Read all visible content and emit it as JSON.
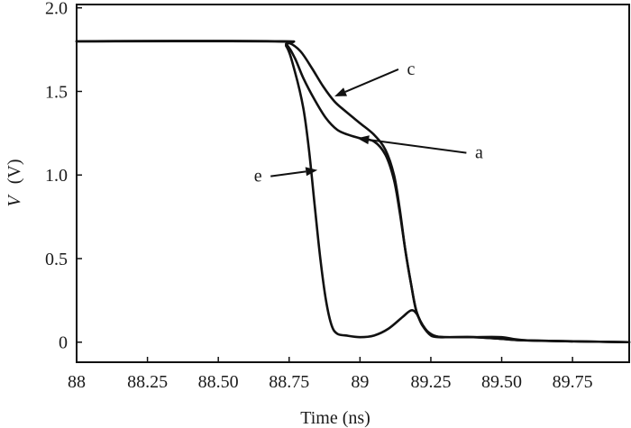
{
  "chart_data": {
    "type": "line",
    "title": "",
    "xlabel": "Time (ns)",
    "ylabel_italic": "V",
    "ylabel_unit": "(V)",
    "xlim": [
      88,
      89.95
    ],
    "ylim": [
      -0.12,
      2.02
    ],
    "xticks": [
      {
        "value": 88,
        "label": "88"
      },
      {
        "value": 88.25,
        "label": "88.25"
      },
      {
        "value": 88.5,
        "label": "88.50"
      },
      {
        "value": 88.75,
        "label": "88.75"
      },
      {
        "value": 89,
        "label": "89"
      },
      {
        "value": 89.25,
        "label": "89.25"
      },
      {
        "value": 89.5,
        "label": "89.50"
      },
      {
        "value": 89.75,
        "label": "89.75"
      }
    ],
    "yticks": [
      {
        "value": 0,
        "label": "0"
      },
      {
        "value": 0.5,
        "label": "0.5"
      },
      {
        "value": 1.0,
        "label": "1.0"
      },
      {
        "value": 1.5,
        "label": "1.5"
      },
      {
        "value": 2.0,
        "label": "2.0"
      }
    ],
    "grid": false,
    "series": [
      {
        "name": "c",
        "x": [
          88,
          88.7,
          88.75,
          88.79,
          88.83,
          88.87,
          88.91,
          88.95,
          89.0,
          89.05,
          89.09,
          89.12,
          89.14,
          89.16,
          89.18,
          89.2,
          89.23,
          89.26,
          89.3,
          89.4,
          89.5,
          89.6,
          89.95
        ],
        "y": [
          1.8,
          1.8,
          1.79,
          1.74,
          1.64,
          1.53,
          1.44,
          1.38,
          1.31,
          1.24,
          1.15,
          1.0,
          0.8,
          0.55,
          0.35,
          0.18,
          0.08,
          0.04,
          0.03,
          0.03,
          0.02,
          0.01,
          0.0
        ]
      },
      {
        "name": "a",
        "x": [
          88,
          88.7,
          88.74,
          88.77,
          88.8,
          88.84,
          88.88,
          88.92,
          88.96,
          89.0,
          89.05,
          89.09,
          89.12,
          89.14,
          89.16,
          89.18,
          89.2,
          89.23,
          89.26,
          89.3,
          89.4,
          89.5,
          89.6,
          89.95
        ],
        "y": [
          1.8,
          1.8,
          1.78,
          1.7,
          1.58,
          1.45,
          1.34,
          1.27,
          1.24,
          1.22,
          1.2,
          1.12,
          0.97,
          0.78,
          0.55,
          0.35,
          0.18,
          0.08,
          0.04,
          0.03,
          0.03,
          0.02,
          0.01,
          0.0
        ]
      },
      {
        "name": "e",
        "x": [
          88,
          88.7,
          88.74,
          88.77,
          88.8,
          88.82,
          88.84,
          88.86,
          88.88,
          88.9,
          88.92,
          88.95,
          89.0,
          89.05,
          89.1,
          89.15,
          89.18,
          89.2,
          89.22,
          89.25,
          89.28,
          89.32,
          89.4,
          89.5,
          89.6,
          89.95
        ],
        "y": [
          1.8,
          1.8,
          1.77,
          1.62,
          1.4,
          1.15,
          0.82,
          0.5,
          0.25,
          0.1,
          0.05,
          0.04,
          0.03,
          0.04,
          0.08,
          0.15,
          0.19,
          0.17,
          0.1,
          0.04,
          0.03,
          0.03,
          0.03,
          0.03,
          0.01,
          0.0
        ]
      }
    ],
    "annotations": [
      {
        "text": "c",
        "series": "c",
        "point_x": 88.91,
        "point_y": 1.47,
        "label_x": 89.18,
        "label_y": 1.6
      },
      {
        "text": "a",
        "series": "a",
        "point_x": 88.99,
        "point_y": 1.22,
        "label_x": 89.42,
        "label_y": 1.1
      },
      {
        "text": "e",
        "series": "e",
        "point_x": 88.85,
        "point_y": 1.03,
        "label_x": 88.64,
        "label_y": 0.96
      }
    ]
  }
}
